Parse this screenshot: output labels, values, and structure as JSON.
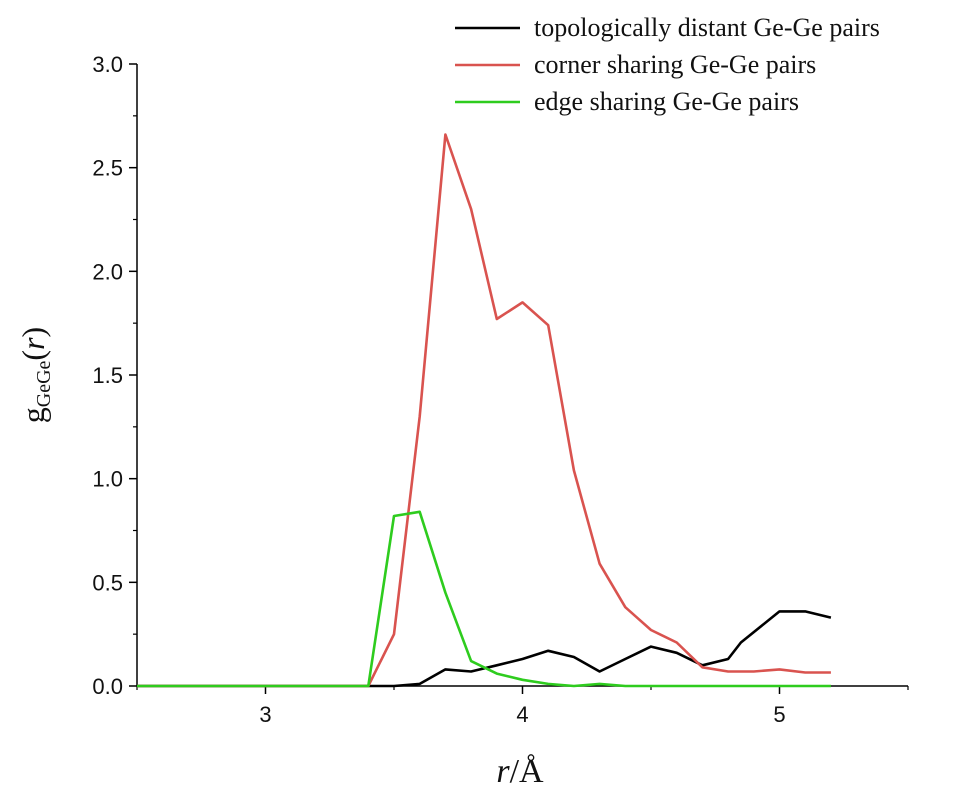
{
  "chart_data": {
    "type": "line",
    "title": "",
    "xlabel": {
      "italic": "r",
      "rest": "/Å"
    },
    "ylabel": {
      "main": "g",
      "subscript": "GeGe",
      "open": "(",
      "italic": "r",
      "close": ")"
    },
    "xlim": [
      2.5,
      5.5
    ],
    "ylim": [
      0.0,
      3.0
    ],
    "xticks": [
      3,
      4,
      5
    ],
    "xticklabels": [
      "3",
      "4",
      "5"
    ],
    "yticks": [
      0.0,
      0.5,
      1.0,
      1.5,
      2.0,
      2.5,
      3.0
    ],
    "yticklabels": [
      "0.0",
      "0.5",
      "1.0",
      "1.5",
      "2.0",
      "2.5",
      "3.0"
    ],
    "grid": false,
    "legend_position": "top-right",
    "series": [
      {
        "name": "topologically distant Ge-Ge pairs",
        "color": "#000000",
        "x": [
          2.5,
          3.0,
          3.4,
          3.5,
          3.6,
          3.7,
          3.8,
          3.9,
          4.0,
          4.1,
          4.2,
          4.3,
          4.4,
          4.5,
          4.6,
          4.7,
          4.8,
          4.85,
          5.0,
          5.1,
          5.2
        ],
        "y": [
          0.0,
          0.0,
          0.0,
          0.0,
          0.01,
          0.08,
          0.07,
          0.1,
          0.13,
          0.17,
          0.14,
          0.07,
          0.13,
          0.19,
          0.16,
          0.1,
          0.13,
          0.21,
          0.36,
          0.36,
          0.33
        ]
      },
      {
        "name": "corner sharing Ge-Ge pairs",
        "color": "#d9534f",
        "x": [
          2.5,
          3.0,
          3.4,
          3.5,
          3.6,
          3.7,
          3.8,
          3.9,
          4.0,
          4.1,
          4.2,
          4.3,
          4.4,
          4.5,
          4.6,
          4.7,
          4.8,
          4.9,
          5.0,
          5.1,
          5.2
        ],
        "y": [
          0.0,
          0.0,
          0.0,
          0.25,
          1.3,
          2.66,
          2.3,
          1.77,
          1.85,
          1.74,
          1.04,
          0.59,
          0.38,
          0.27,
          0.21,
          0.09,
          0.07,
          0.07,
          0.08,
          0.065,
          0.065
        ]
      },
      {
        "name": "edge sharing Ge-Ge pairs",
        "color": "#2ecc1e",
        "x": [
          2.5,
          3.0,
          3.4,
          3.5,
          3.6,
          3.7,
          3.8,
          3.9,
          4.0,
          4.1,
          4.2,
          4.3,
          4.4,
          4.5,
          4.6,
          4.7,
          4.8,
          4.9,
          5.0,
          5.1,
          5.2
        ],
        "y": [
          0.0,
          0.0,
          0.0,
          0.82,
          0.84,
          0.45,
          0.12,
          0.06,
          0.03,
          0.01,
          0.0,
          0.01,
          0.0,
          0.0,
          0.0,
          0.0,
          0.0,
          0.0,
          0.0,
          0.0,
          0.0
        ]
      }
    ]
  }
}
